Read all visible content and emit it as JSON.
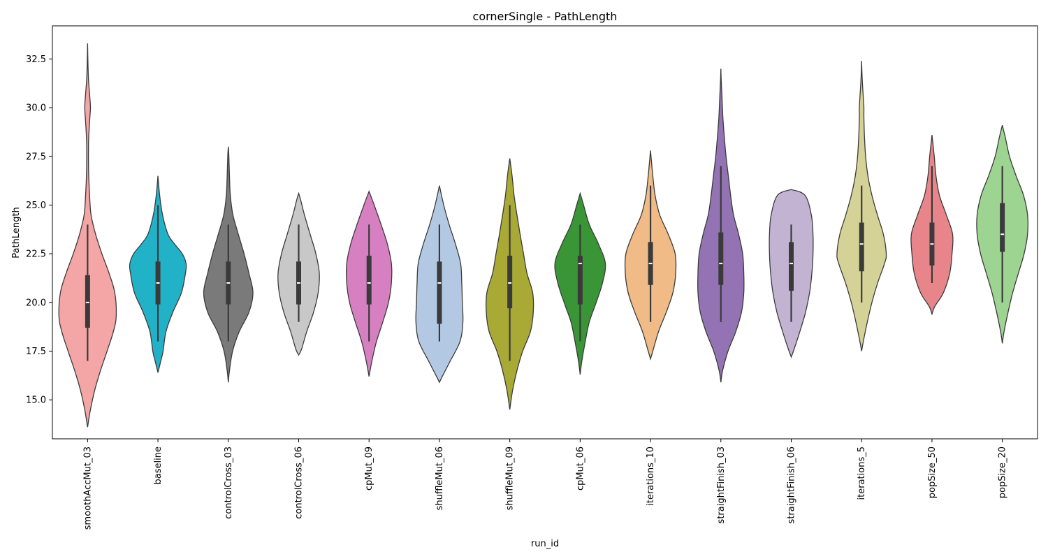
{
  "chart_data": {
    "type": "violin",
    "title": "cornerSingle - PathLength",
    "xlabel": "run_id",
    "ylabel": "PathLength",
    "ylim": [
      13.0,
      34.2
    ],
    "yticks": [
      "15.0",
      "17.5",
      "20.0",
      "22.5",
      "25.0",
      "27.5",
      "30.0",
      "32.5"
    ],
    "grid": false,
    "legend": "none",
    "series": [
      {
        "category": "smoothAccMut_03",
        "color": "#f4a5a5",
        "min": 17,
        "q1": 18.7,
        "median": 20,
        "q3": 21.4,
        "max": 24,
        "kde_min": 13.6,
        "kde_max": 33.3,
        "profile": [
          [
            13.6,
            0
          ],
          [
            14.5,
            0.1
          ],
          [
            15.5,
            0.25
          ],
          [
            16.5,
            0.45
          ],
          [
            17.5,
            0.68
          ],
          [
            18.5,
            0.9
          ],
          [
            19.3,
            1.0
          ],
          [
            20.5,
            0.95
          ],
          [
            21.5,
            0.75
          ],
          [
            22.5,
            0.5
          ],
          [
            23.5,
            0.28
          ],
          [
            24.5,
            0.12
          ],
          [
            25.5,
            0.07
          ],
          [
            26.5,
            0.04
          ],
          [
            27.5,
            0.03
          ],
          [
            28.5,
            0.04
          ],
          [
            29.5,
            0.08
          ],
          [
            30.0,
            0.1
          ],
          [
            30.5,
            0.08
          ],
          [
            31.5,
            0.03
          ],
          [
            32.5,
            0.01
          ],
          [
            33.3,
            0
          ]
        ]
      },
      {
        "category": "baseline",
        "color": "#22b2c8",
        "min": 18,
        "q1": 19.9,
        "median": 21,
        "q3": 22.1,
        "max": 25,
        "kde_min": 16.4,
        "kde_max": 26.5,
        "profile": [
          [
            16.4,
            0
          ],
          [
            17.0,
            0.1
          ],
          [
            17.5,
            0.18
          ],
          [
            18.5,
            0.28
          ],
          [
            19.5,
            0.52
          ],
          [
            20.5,
            0.82
          ],
          [
            21.5,
            0.96
          ],
          [
            22.0,
            0.98
          ],
          [
            22.5,
            0.85
          ],
          [
            23.0,
            0.58
          ],
          [
            23.5,
            0.35
          ],
          [
            24.5,
            0.16
          ],
          [
            25.5,
            0.06
          ],
          [
            26.5,
            0
          ]
        ]
      },
      {
        "category": "controlCross_03",
        "color": "#7a7a7a",
        "min": 18,
        "q1": 19.9,
        "median": 21,
        "q3": 22.1,
        "max": 24,
        "kde_min": 15.9,
        "kde_max": 28,
        "profile": [
          [
            15.9,
            0
          ],
          [
            16.5,
            0.04
          ],
          [
            17.5,
            0.15
          ],
          [
            18.5,
            0.38
          ],
          [
            19.5,
            0.72
          ],
          [
            20.5,
            0.86
          ],
          [
            21.5,
            0.72
          ],
          [
            22.5,
            0.55
          ],
          [
            23.5,
            0.35
          ],
          [
            24.5,
            0.16
          ],
          [
            25.5,
            0.07
          ],
          [
            26.5,
            0.04
          ],
          [
            27.5,
            0.02
          ],
          [
            28,
            0
          ]
        ]
      },
      {
        "category": "controlCross_06",
        "color": "#c8c8c8",
        "min": 19,
        "q1": 19.9,
        "median": 21,
        "q3": 22.1,
        "max": 24,
        "kde_min": 17.3,
        "kde_max": 25.6,
        "profile": [
          [
            17.3,
            0
          ],
          [
            17.6,
            0.1
          ],
          [
            18.5,
            0.28
          ],
          [
            19.5,
            0.52
          ],
          [
            20.5,
            0.68
          ],
          [
            21.5,
            0.72
          ],
          [
            22.5,
            0.6
          ],
          [
            23.5,
            0.4
          ],
          [
            24.5,
            0.2
          ],
          [
            25.2,
            0.08
          ],
          [
            25.6,
            0
          ]
        ]
      },
      {
        "category": "cpMut_09",
        "color": "#d67fc1",
        "min": 18,
        "q1": 19.9,
        "median": 21,
        "q3": 22.4,
        "max": 24,
        "kde_min": 16.2,
        "kde_max": 25.7,
        "profile": [
          [
            16.2,
            0
          ],
          [
            17.0,
            0.1
          ],
          [
            18.0,
            0.26
          ],
          [
            19.0,
            0.48
          ],
          [
            20.0,
            0.68
          ],
          [
            21.0,
            0.78
          ],
          [
            22.0,
            0.78
          ],
          [
            23.0,
            0.64
          ],
          [
            24.0,
            0.42
          ],
          [
            25.0,
            0.18
          ],
          [
            25.7,
            0
          ]
        ]
      },
      {
        "category": "shuffleMut_06",
        "color": "#b3c8e3",
        "min": 18,
        "q1": 18.9,
        "median": 21,
        "q3": 22.1,
        "max": 24,
        "kde_min": 15.9,
        "kde_max": 26,
        "profile": [
          [
            15.9,
            0
          ],
          [
            16.2,
            0.1
          ],
          [
            17.0,
            0.38
          ],
          [
            18.0,
            0.72
          ],
          [
            19.0,
            0.82
          ],
          [
            20.0,
            0.8
          ],
          [
            21.0,
            0.78
          ],
          [
            22.0,
            0.74
          ],
          [
            23.0,
            0.56
          ],
          [
            24.0,
            0.34
          ],
          [
            25.0,
            0.15
          ],
          [
            26.0,
            0
          ]
        ]
      },
      {
        "category": "shuffleMut_09",
        "color": "#a9aa35",
        "min": 17,
        "q1": 19.7,
        "median": 21,
        "q3": 22.4,
        "max": 25,
        "kde_min": 14.5,
        "kde_max": 27.4,
        "profile": [
          [
            14.5,
            0
          ],
          [
            15.5,
            0.1
          ],
          [
            16.5,
            0.25
          ],
          [
            17.5,
            0.45
          ],
          [
            18.5,
            0.72
          ],
          [
            19.5,
            0.82
          ],
          [
            20.5,
            0.8
          ],
          [
            21.5,
            0.6
          ],
          [
            22.5,
            0.48
          ],
          [
            23.5,
            0.36
          ],
          [
            24.5,
            0.25
          ],
          [
            25.5,
            0.15
          ],
          [
            26.5,
            0.08
          ],
          [
            27.4,
            0
          ]
        ]
      },
      {
        "category": "cpMut_06",
        "color": "#3a9536",
        "min": 18,
        "q1": 19.9,
        "median": 22,
        "q3": 22.4,
        "max": 24,
        "kde_min": 16.3,
        "kde_max": 25.6,
        "profile": [
          [
            16.3,
            0
          ],
          [
            17.0,
            0.06
          ],
          [
            18.0,
            0.18
          ],
          [
            19.0,
            0.32
          ],
          [
            20.0,
            0.56
          ],
          [
            21.0,
            0.78
          ],
          [
            22.0,
            0.88
          ],
          [
            23.0,
            0.64
          ],
          [
            24.0,
            0.32
          ],
          [
            25.0,
            0.12
          ],
          [
            25.6,
            0
          ]
        ]
      },
      {
        "category": "iterations_10",
        "color": "#f0bb86",
        "min": 19,
        "q1": 20.9,
        "median": 22,
        "q3": 23.1,
        "max": 26,
        "kde_min": 17.1,
        "kde_max": 27.8,
        "profile": [
          [
            17.1,
            0
          ],
          [
            17.5,
            0.08
          ],
          [
            18.5,
            0.28
          ],
          [
            19.5,
            0.55
          ],
          [
            20.5,
            0.78
          ],
          [
            21.5,
            0.88
          ],
          [
            22.5,
            0.86
          ],
          [
            23.5,
            0.62
          ],
          [
            24.5,
            0.32
          ],
          [
            25.5,
            0.16
          ],
          [
            26.5,
            0.08
          ],
          [
            27.8,
            0
          ]
        ]
      },
      {
        "category": "straightFinish_03",
        "color": "#9373b3",
        "min": 19,
        "q1": 20.9,
        "median": 22,
        "q3": 23.6,
        "max": 27,
        "kde_min": 15.9,
        "kde_max": 32,
        "profile": [
          [
            15.9,
            0
          ],
          [
            16.5,
            0.06
          ],
          [
            17.5,
            0.25
          ],
          [
            18.5,
            0.52
          ],
          [
            19.5,
            0.72
          ],
          [
            20.5,
            0.8
          ],
          [
            21.5,
            0.8
          ],
          [
            22.5,
            0.76
          ],
          [
            23.5,
            0.62
          ],
          [
            24.5,
            0.44
          ],
          [
            25.5,
            0.34
          ],
          [
            26.5,
            0.26
          ],
          [
            27.5,
            0.18
          ],
          [
            28.5,
            0.12
          ],
          [
            29.5,
            0.07
          ],
          [
            30.5,
            0.04
          ],
          [
            31.5,
            0.01
          ],
          [
            32,
            0
          ]
        ]
      },
      {
        "category": "straightFinish_06",
        "color": "#c3b3d3",
        "min": 19,
        "q1": 20.6,
        "median": 22,
        "q3": 23.1,
        "max": 24,
        "kde_min": 17.2,
        "kde_max": 25.8,
        "profile": [
          [
            17.2,
            0
          ],
          [
            17.6,
            0.1
          ],
          [
            18.5,
            0.3
          ],
          [
            19.5,
            0.5
          ],
          [
            20.5,
            0.64
          ],
          [
            21.5,
            0.72
          ],
          [
            22.5,
            0.76
          ],
          [
            23.5,
            0.76
          ],
          [
            24.5,
            0.7
          ],
          [
            25.5,
            0.48
          ],
          [
            25.8,
            0
          ]
        ]
      },
      {
        "category": "iterations_5",
        "color": "#d4d296",
        "min": 20,
        "q1": 21.6,
        "median": 23,
        "q3": 24.1,
        "max": 26,
        "kde_min": 17.5,
        "kde_max": 32.4,
        "profile": [
          [
            17.5,
            0
          ],
          [
            18.0,
            0.06
          ],
          [
            19.0,
            0.2
          ],
          [
            20.0,
            0.36
          ],
          [
            21.0,
            0.56
          ],
          [
            22.0,
            0.8
          ],
          [
            22.5,
            0.86
          ],
          [
            23.5,
            0.76
          ],
          [
            24.5,
            0.55
          ],
          [
            25.5,
            0.36
          ],
          [
            26.5,
            0.22
          ],
          [
            27.5,
            0.14
          ],
          [
            28.5,
            0.1
          ],
          [
            29.5,
            0.08
          ],
          [
            30.0,
            0.08
          ],
          [
            30.5,
            0.06
          ],
          [
            31.5,
            0.02
          ],
          [
            32.4,
            0
          ]
        ]
      },
      {
        "category": "popSize_50",
        "color": "#e8858a",
        "min": 21,
        "q1": 21.9,
        "median": 23,
        "q3": 24.1,
        "max": 27,
        "kde_min": 19.4,
        "kde_max": 28.6,
        "profile": [
          [
            19.4,
            0
          ],
          [
            19.8,
            0.1
          ],
          [
            20.5,
            0.4
          ],
          [
            21.5,
            0.62
          ],
          [
            22.5,
            0.7
          ],
          [
            23.5,
            0.72
          ],
          [
            24.5,
            0.5
          ],
          [
            25.5,
            0.26
          ],
          [
            26.5,
            0.14
          ],
          [
            27.5,
            0.08
          ],
          [
            28.6,
            0
          ]
        ]
      },
      {
        "category": "popSize_20",
        "color": "#9ed491",
        "min": 20,
        "q1": 22.6,
        "median": 23.5,
        "q3": 25.1,
        "max": 27,
        "kde_min": 17.9,
        "kde_max": 29.1,
        "profile": [
          [
            17.9,
            0
          ],
          [
            18.5,
            0.06
          ],
          [
            19.5,
            0.2
          ],
          [
            20.5,
            0.36
          ],
          [
            21.5,
            0.56
          ],
          [
            22.5,
            0.76
          ],
          [
            23.5,
            0.88
          ],
          [
            24.5,
            0.88
          ],
          [
            25.5,
            0.74
          ],
          [
            26.5,
            0.48
          ],
          [
            27.5,
            0.25
          ],
          [
            28.5,
            0.1
          ],
          [
            29.1,
            0
          ]
        ]
      }
    ]
  }
}
